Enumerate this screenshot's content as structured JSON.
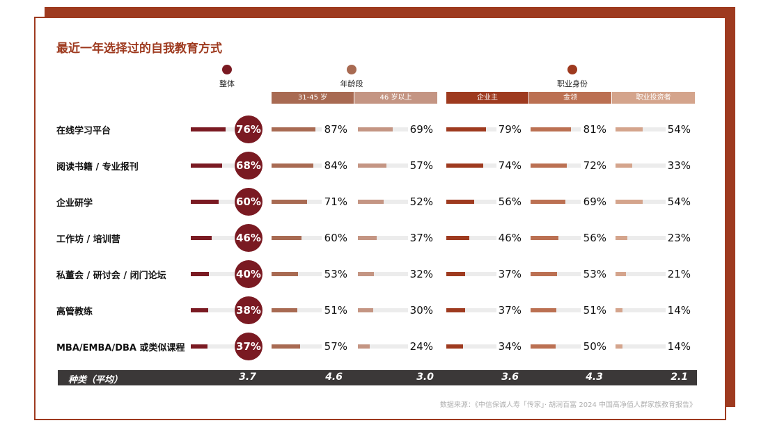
{
  "title": "最近一年选择过的自我教育方式",
  "groups": [
    {
      "label": "整体",
      "color": "#7a1a22"
    },
    {
      "label": "年龄段",
      "color": "#a86a52"
    },
    {
      "label": "职业身份",
      "color": "#9e3a1f"
    }
  ],
  "columns": [
    {
      "key": "overall",
      "label": "整体",
      "color": "#7a1a22",
      "header": ""
    },
    {
      "key": "age_31_45",
      "label": "31-45 岁",
      "color": "#a86a52",
      "header_bg": "#a86a52"
    },
    {
      "key": "age_46_plus",
      "label": "46 岁以上",
      "color": "#c49583",
      "header_bg": "#c49583"
    },
    {
      "key": "entrepreneur",
      "label": "企业主",
      "color": "#9e3a1f",
      "header_bg": "#9e3a1f"
    },
    {
      "key": "white_collar",
      "label": "金领",
      "color": "#bb7052",
      "header_bg": "#bb7052"
    },
    {
      "key": "investor",
      "label": "职业投资者",
      "color": "#d4a48c",
      "header_bg": "#d4a48c"
    }
  ],
  "chart_data": {
    "type": "bar",
    "title": "最近一年选择过的自我教育方式",
    "categories": [
      "在线学习平台",
      "阅读书籍 / 专业报刊",
      "企业研学",
      "工作坊 / 培训营",
      "私董会 / 研讨会 / 闭门论坛",
      "高管教练",
      "MBA/EMBA/DBA 或类似课程"
    ],
    "series": [
      {
        "name": "整体",
        "values": [
          76,
          68,
          60,
          46,
          40,
          38,
          37
        ]
      },
      {
        "name": "31-45 岁",
        "values": [
          87,
          84,
          71,
          60,
          53,
          51,
          57
        ]
      },
      {
        "name": "46 岁以上",
        "values": [
          69,
          57,
          52,
          37,
          32,
          30,
          24
        ]
      },
      {
        "name": "企业主",
        "values": [
          79,
          74,
          56,
          46,
          37,
          37,
          34
        ]
      },
      {
        "name": "金领",
        "values": [
          81,
          72,
          69,
          56,
          53,
          51,
          50
        ]
      },
      {
        "name": "职业投资者",
        "values": [
          54,
          33,
          54,
          23,
          21,
          14,
          14
        ]
      }
    ],
    "unit": "%",
    "ylim": [
      0,
      100
    ]
  },
  "average": {
    "label": "种类（平均）",
    "values": [
      "3.7",
      "4.6",
      "3.0",
      "3.6",
      "4.3",
      "2.1"
    ]
  },
  "source": "数据来源：《中信保诚人寿「传家」· 胡润百富 2024 中国高净值人群家族教育报告》"
}
